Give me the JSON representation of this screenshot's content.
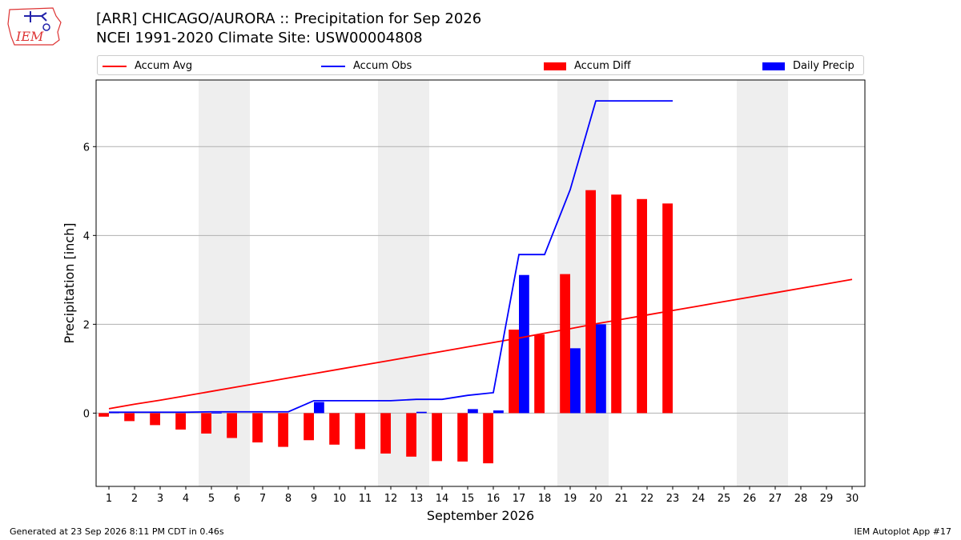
{
  "header": {
    "title_line1": "[ARR] CHICAGO/AURORA :: Precipitation for Sep 2026",
    "title_line2": "NCEI 1991-2020 Climate Site: USW00004808",
    "logo_text": "IEM"
  },
  "legend": [
    {
      "label": "Accum Avg",
      "kind": "line",
      "color": "#ff0000"
    },
    {
      "label": "Accum Obs",
      "kind": "line",
      "color": "#0000ff"
    },
    {
      "label": "Accum Diff",
      "kind": "bar",
      "color": "#ff0000"
    },
    {
      "label": "Daily Precip",
      "kind": "bar",
      "color": "#0000ff"
    }
  ],
  "footer": {
    "left": "Generated at 23 Sep 2026 8:11 PM CDT in 0.46s",
    "right": "IEM Autoplot App #17"
  },
  "chart_data": {
    "type": "bar",
    "xlabel": "September 2026",
    "ylabel": "Precipitation [inch]",
    "x": [
      1,
      2,
      3,
      4,
      5,
      6,
      7,
      8,
      9,
      10,
      11,
      12,
      13,
      14,
      15,
      16,
      17,
      18,
      19,
      20,
      21,
      22,
      23,
      24,
      25,
      26,
      27,
      28,
      29,
      30
    ],
    "xlim": [
      0.5,
      30.5
    ],
    "ylim": [
      -1.65,
      7.5
    ],
    "yticks": [
      0,
      2,
      4,
      6
    ],
    "grid": "horizontal",
    "weekends_shaded": [
      [
        5,
        6
      ],
      [
        12,
        13
      ],
      [
        19,
        20
      ],
      [
        26,
        27
      ]
    ],
    "series": [
      {
        "name": "Accum Avg",
        "kind": "line",
        "color": "#ff0000",
        "values": [
          0.1,
          0.2,
          0.29,
          0.39,
          0.49,
          0.59,
          0.69,
          0.79,
          0.89,
          0.99,
          1.09,
          1.19,
          1.29,
          1.39,
          1.49,
          1.59,
          1.69,
          1.8,
          1.9,
          2.01,
          2.11,
          2.21,
          2.31,
          2.41,
          2.51,
          2.61,
          2.71,
          2.81,
          2.91,
          3.01
        ]
      },
      {
        "name": "Accum Obs",
        "kind": "line",
        "color": "#0000ff",
        "values": [
          0.02,
          0.02,
          0.02,
          0.02,
          0.03,
          0.03,
          0.03,
          0.03,
          0.28,
          0.28,
          0.28,
          0.28,
          0.31,
          0.31,
          0.4,
          0.46,
          3.57,
          3.57,
          5.03,
          7.03,
          7.03,
          7.03,
          7.03,
          null,
          null,
          null,
          null,
          null,
          null,
          null
        ]
      },
      {
        "name": "Accum Diff",
        "kind": "bar",
        "color": "#ff0000",
        "values": [
          -0.08,
          -0.18,
          -0.27,
          -0.37,
          -0.46,
          -0.56,
          -0.66,
          -0.76,
          -0.61,
          -0.71,
          -0.81,
          -0.91,
          -0.98,
          -1.08,
          -1.09,
          -1.13,
          1.88,
          1.77,
          3.13,
          5.02,
          4.92,
          4.82,
          4.72,
          null,
          null,
          null,
          null,
          null,
          null,
          null
        ]
      },
      {
        "name": "Daily Precip",
        "kind": "bar",
        "color": "#0000ff",
        "values": [
          0.02,
          0.0,
          0.0,
          0.0,
          0.01,
          0.0,
          0.0,
          0.0,
          0.25,
          0.0,
          0.0,
          0.0,
          0.03,
          0.0,
          0.09,
          0.06,
          3.11,
          0.0,
          1.46,
          2.0,
          0.0,
          0.0,
          0.0,
          null,
          null,
          null,
          null,
          null,
          null,
          null
        ]
      }
    ]
  }
}
